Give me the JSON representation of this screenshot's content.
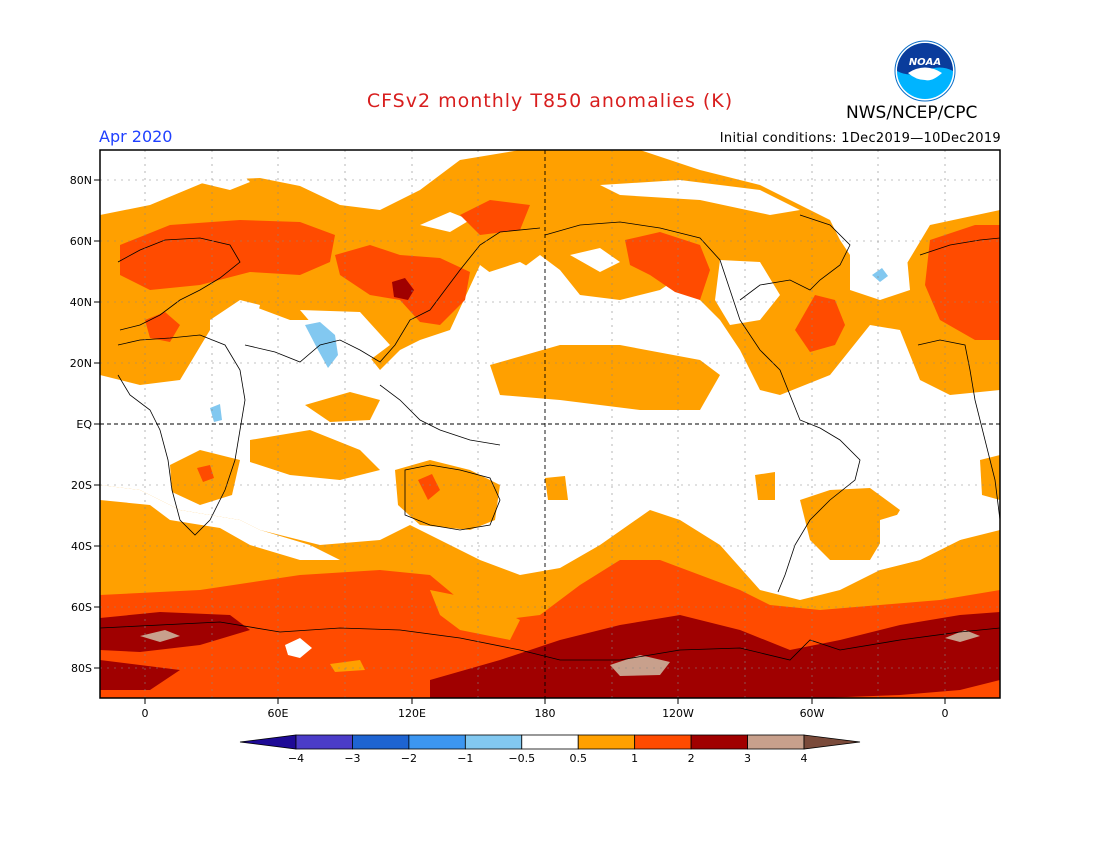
{
  "header": {
    "title": "CFSv2 monthly T850 anomalies (K)",
    "month": "Apr 2020",
    "initial_conditions": "Initial conditions: 1Dec2019—10Dec2019",
    "agency": "NWS/NCEP/CPC",
    "logo_text": "NOAA"
  },
  "axes": {
    "lat_labels": [
      "80N",
      "60N",
      "40N",
      "20N",
      "EQ",
      "20S",
      "40S",
      "60S",
      "80S"
    ],
    "lon_labels": [
      "0",
      "60E",
      "120E",
      "180",
      "120W",
      "60W",
      "0"
    ]
  },
  "legend": {
    "labels": [
      "−4",
      "−3",
      "−2",
      "−1",
      "−0.5",
      "0.5",
      "1",
      "2",
      "3",
      "4"
    ],
    "colors": [
      "#1e0a96",
      "#4b3cc8",
      "#1e64d2",
      "#3c96f0",
      "#82c8f0",
      "#ffffff",
      "#ffa000",
      "#ff4b00",
      "#a00000",
      "#c8a08c",
      "#7a4a3a"
    ]
  },
  "colors": {
    "anomaly_0_5_1": "#ffa000",
    "anomaly_1_2": "#ff4b00",
    "anomaly_2_3": "#a00000",
    "anomaly_3_4": "#c8a08c",
    "anomaly_neg_0_5_neg_1": "#82c8f0"
  }
}
